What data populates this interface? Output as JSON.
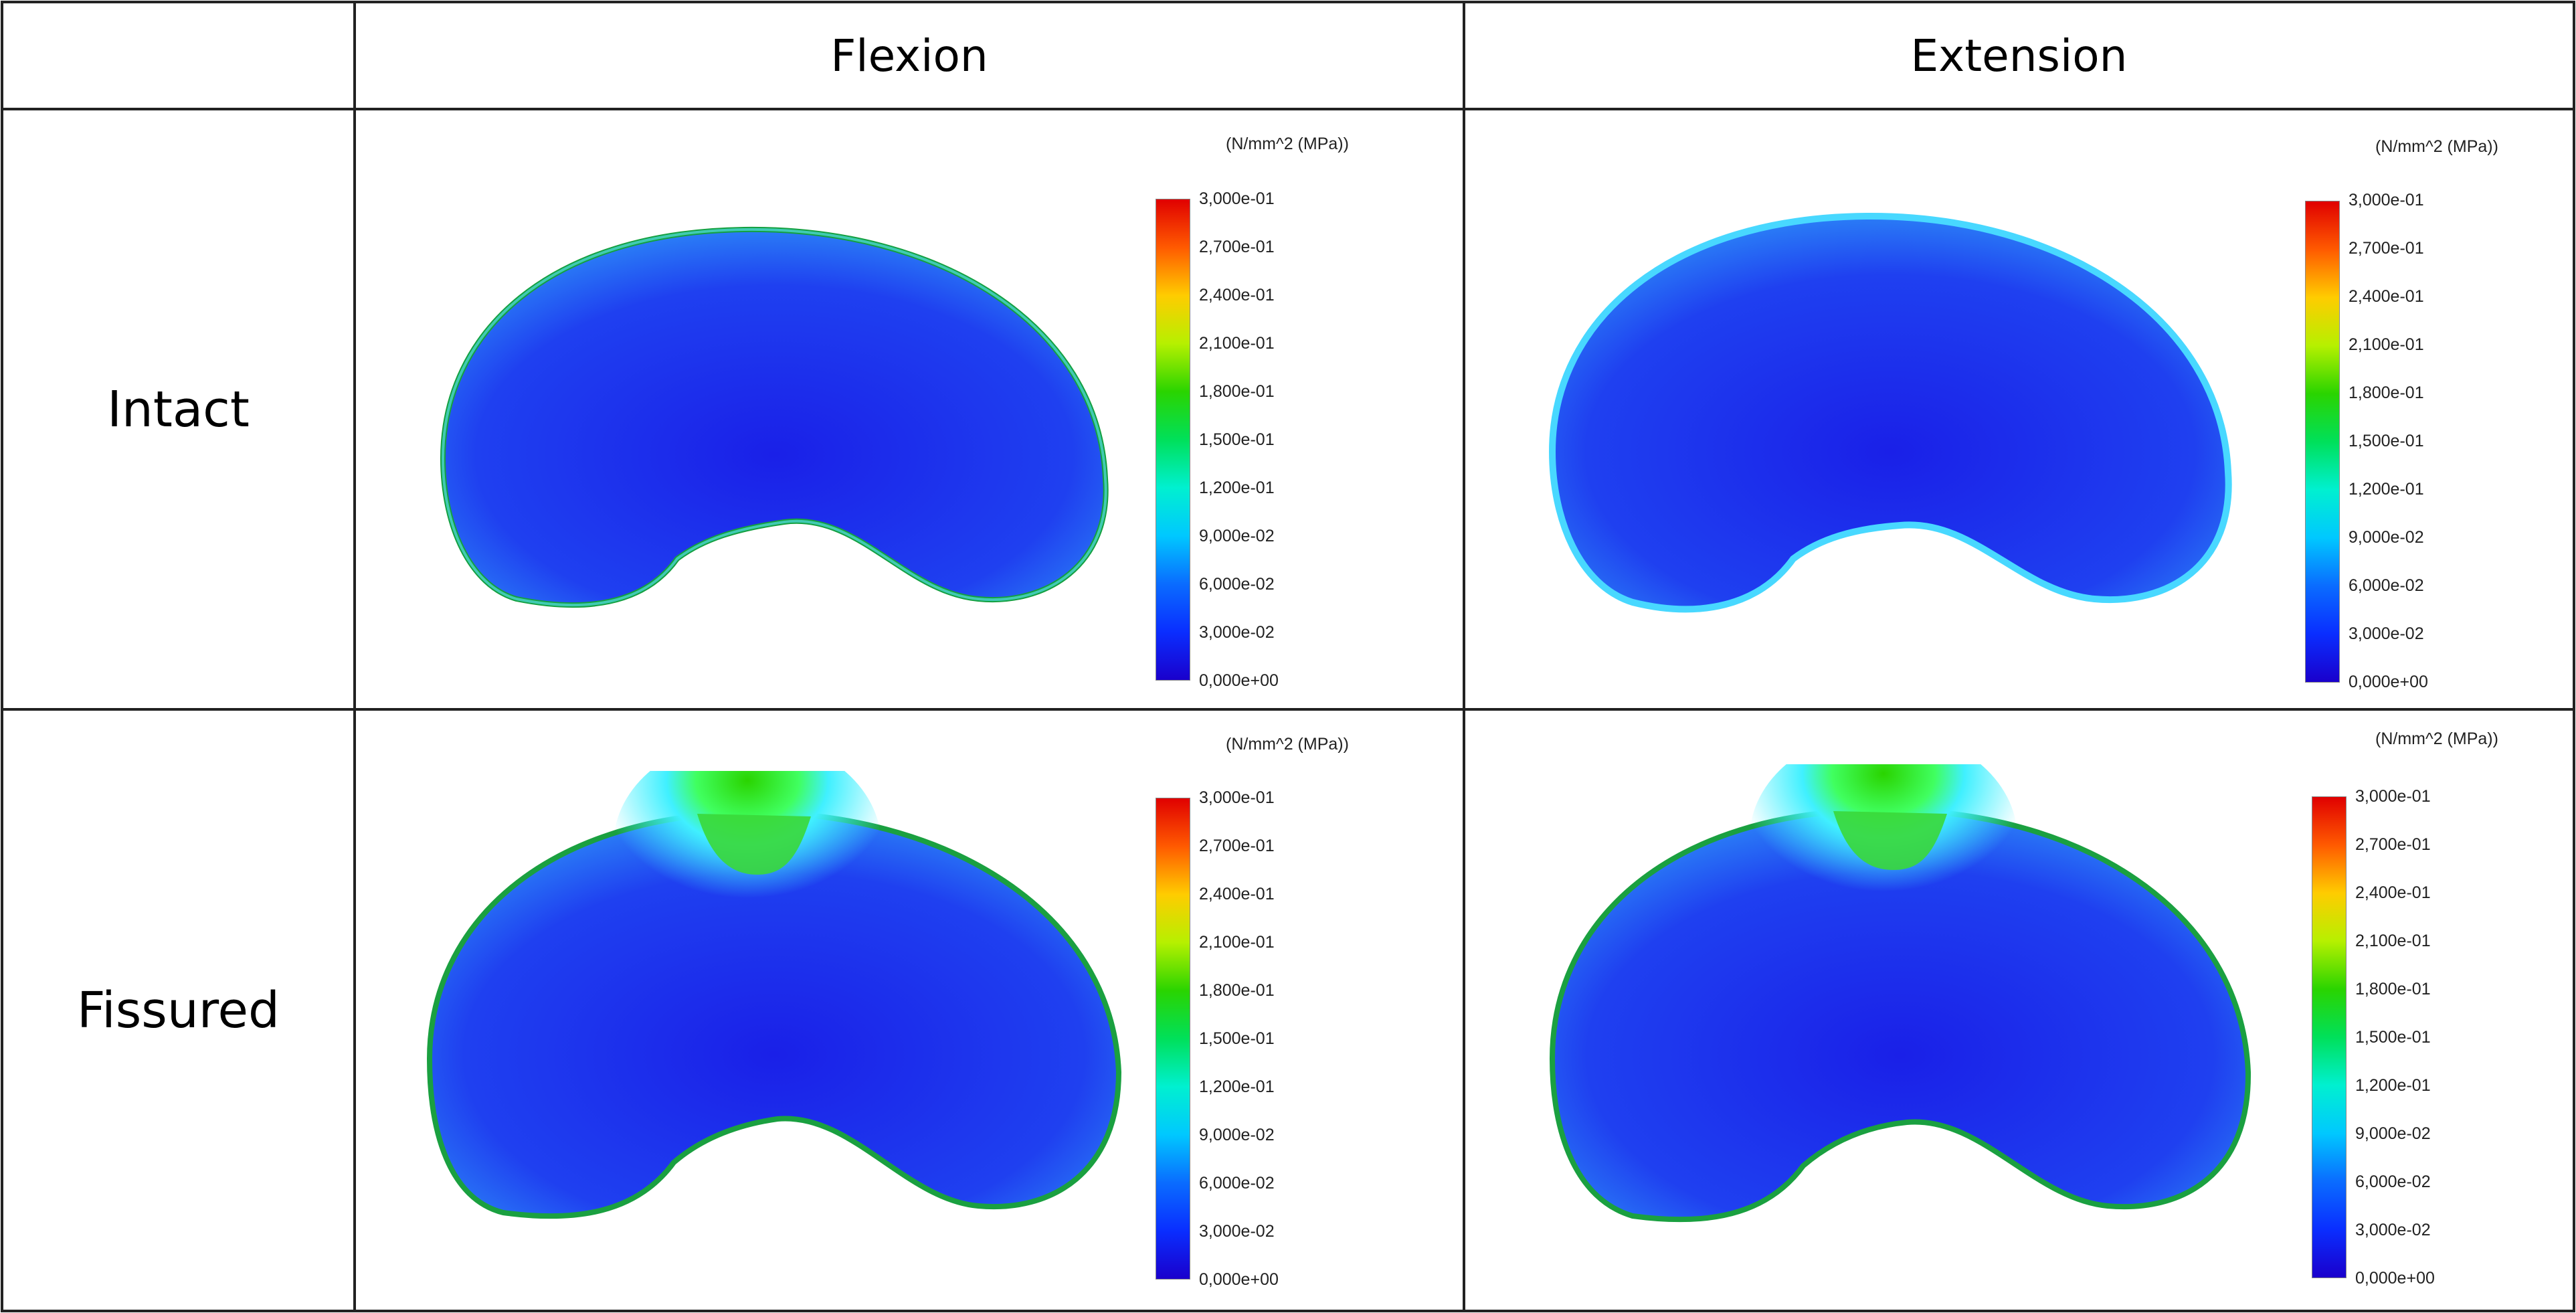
{
  "columns": [
    "Flexion",
    "Extension"
  ],
  "rows": [
    "Intact",
    "Fissured"
  ],
  "colorbar": {
    "unit": "(N/mm^2 (MPa))",
    "ticks": [
      "3,000e-01",
      "2,700e-01",
      "2,400e-01",
      "2,100e-01",
      "1,800e-01",
      "1,500e-01",
      "1,200e-01",
      "9,000e-02",
      "6,000e-02",
      "3,000e-02",
      "0,000e+00"
    ],
    "range": [
      0,
      0.3
    ],
    "colors": [
      "#e00000",
      "#ff5a00",
      "#ffcc00",
      "#b6f000",
      "#2ad400",
      "#00e05a",
      "#00f0d0",
      "#00c8ff",
      "#0a6cff",
      "#0a2eff",
      "#1a00cc"
    ]
  },
  "panels": [
    {
      "row": "Intact",
      "column": "Flexion",
      "hotspot": false
    },
    {
      "row": "Intact",
      "column": "Extension",
      "hotspot": false
    },
    {
      "row": "Fissured",
      "column": "Flexion",
      "hotspot": true
    },
    {
      "row": "Fissured",
      "column": "Extension",
      "hotspot": true
    }
  ]
}
